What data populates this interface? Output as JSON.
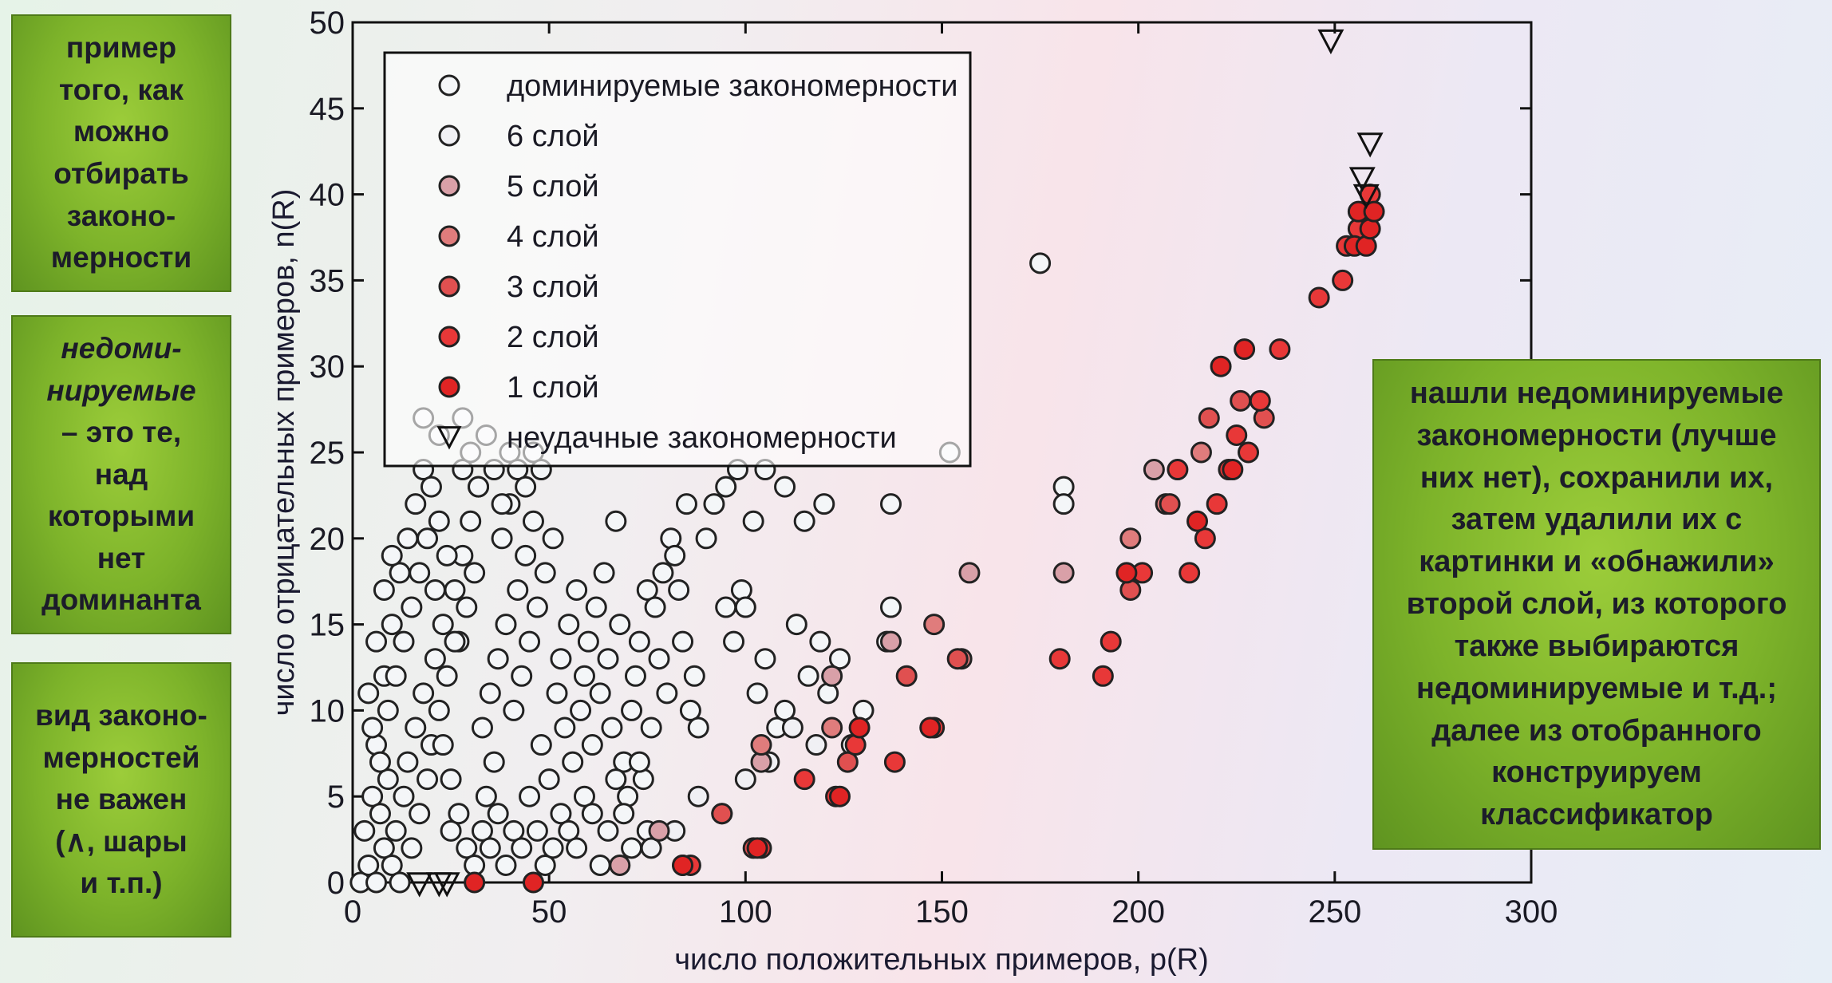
{
  "notes": {
    "left_top": "пример\nтого, как\nможно\nотбирать\nзаконо-\nмерности",
    "left_middle_em": "недоми-\nнируемые",
    "left_middle_rest": "– это те,\nнад\nкоторыми\nнет\nдоминанта",
    "left_bottom": "вид законо-\nмерностей\nне важен\n(∧, шары\nи т.п.)",
    "right": "нашли недоминируемые\nзакономерности (лучше\nних нет), сохранили их,\nзатем удалили их с\nкартинки и «обнажили»\nвторой слой, из которого\nтакже выбираются\nнедоминируемые и т.д.;\nдалее из отобранного\nконструируем\nклассификатор"
  },
  "colors": {
    "dominated": "#f4f6f8",
    "layer6": "#f0f0f4",
    "layer5": "#d9a0a8",
    "layer4": "#e07c7c",
    "layer3": "#e05050",
    "layer2": "#e83838",
    "layer1": "#e02424",
    "outline": "#222222"
  },
  "chart_data": {
    "type": "scatter",
    "xlabel": "число положительных примеров, p(R)",
    "ylabel": "число отрицательных примеров, n(R)",
    "xlim": [
      0,
      300
    ],
    "ylim": [
      0,
      50
    ],
    "xticks": [
      "0",
      "50",
      "100",
      "150",
      "200",
      "250",
      "300"
    ],
    "yticks": [
      "0",
      "5",
      "10",
      "15",
      "20",
      "25",
      "30",
      "35",
      "40",
      "45",
      "50"
    ],
    "legend_position": "top-left",
    "series": [
      {
        "name": "доминируемые закономерности",
        "marker": "circle",
        "color_key": "dominated",
        "points": [
          [
            2,
            0
          ],
          [
            4,
            1
          ],
          [
            6,
            0
          ],
          [
            8,
            2
          ],
          [
            3,
            3
          ],
          [
            5,
            5
          ],
          [
            7,
            4
          ],
          [
            9,
            6
          ],
          [
            10,
            1
          ],
          [
            11,
            3
          ],
          [
            12,
            0
          ],
          [
            13,
            5
          ],
          [
            14,
            7
          ],
          [
            15,
            2
          ],
          [
            16,
            9
          ],
          [
            17,
            4
          ],
          [
            18,
            11
          ],
          [
            19,
            6
          ],
          [
            20,
            8
          ],
          [
            21,
            13
          ],
          [
            22,
            10
          ],
          [
            23,
            15
          ],
          [
            24,
            12
          ],
          [
            25,
            3
          ],
          [
            26,
            17
          ],
          [
            27,
            14
          ],
          [
            28,
            19
          ],
          [
            29,
            16
          ],
          [
            30,
            21
          ],
          [
            31,
            18
          ],
          [
            32,
            23
          ],
          [
            33,
            9
          ],
          [
            34,
            5
          ],
          [
            35,
            11
          ],
          [
            36,
            7
          ],
          [
            37,
            13
          ],
          [
            38,
            20
          ],
          [
            39,
            15
          ],
          [
            40,
            22
          ],
          [
            41,
            10
          ],
          [
            42,
            17
          ],
          [
            43,
            12
          ],
          [
            44,
            19
          ],
          [
            45,
            14
          ],
          [
            46,
            21
          ],
          [
            47,
            16
          ],
          [
            48,
            8
          ],
          [
            49,
            18
          ],
          [
            50,
            6
          ],
          [
            51,
            20
          ],
          [
            52,
            11
          ],
          [
            53,
            13
          ],
          [
            54,
            9
          ],
          [
            55,
            15
          ],
          [
            56,
            7
          ],
          [
            57,
            17
          ],
          [
            58,
            10
          ],
          [
            59,
            12
          ],
          [
            60,
            14
          ],
          [
            61,
            8
          ],
          [
            62,
            16
          ],
          [
            63,
            11
          ],
          [
            64,
            18
          ],
          [
            65,
            13
          ],
          [
            66,
            9
          ],
          [
            67,
            21
          ],
          [
            68,
            15
          ],
          [
            69,
            7
          ],
          [
            70,
            5
          ],
          [
            71,
            10
          ],
          [
            72,
            12
          ],
          [
            73,
            14
          ],
          [
            74,
            6
          ],
          [
            75,
            17
          ],
          [
            76,
            9
          ],
          [
            77,
            16
          ],
          [
            78,
            13
          ],
          [
            79,
            18
          ],
          [
            80,
            11
          ],
          [
            81,
            20
          ],
          [
            82,
            19
          ],
          [
            83,
            17
          ],
          [
            84,
            14
          ],
          [
            85,
            22
          ],
          [
            86,
            10
          ],
          [
            87,
            12
          ],
          [
            88,
            9
          ],
          [
            90,
            20
          ],
          [
            92,
            22
          ],
          [
            95,
            16
          ],
          [
            97,
            14
          ],
          [
            99,
            17
          ],
          [
            100,
            16
          ],
          [
            103,
            11
          ],
          [
            105,
            13
          ],
          [
            108,
            9
          ],
          [
            110,
            10
          ],
          [
            113,
            15
          ],
          [
            116,
            12
          ],
          [
            119,
            14
          ],
          [
            121,
            11
          ],
          [
            124,
            13
          ],
          [
            127,
            8
          ],
          [
            130,
            10
          ],
          [
            6,
            8
          ],
          [
            8,
            12
          ],
          [
            10,
            15
          ],
          [
            12,
            18
          ],
          [
            14,
            20
          ],
          [
            16,
            22
          ],
          [
            18,
            24
          ],
          [
            20,
            23
          ],
          [
            22,
            21
          ],
          [
            24,
            19
          ],
          [
            26,
            14
          ],
          [
            28,
            24
          ],
          [
            30,
            25
          ],
          [
            32,
            23
          ],
          [
            34,
            26
          ],
          [
            36,
            24
          ],
          [
            38,
            22
          ],
          [
            40,
            25
          ],
          [
            42,
            24
          ],
          [
            44,
            23
          ],
          [
            46,
            25
          ],
          [
            48,
            24
          ],
          [
            4,
            11
          ],
          [
            6,
            14
          ],
          [
            8,
            17
          ],
          [
            10,
            19
          ],
          [
            5,
            9
          ],
          [
            7,
            7
          ],
          [
            9,
            10
          ],
          [
            11,
            12
          ],
          [
            13,
            14
          ],
          [
            15,
            16
          ],
          [
            17,
            18
          ],
          [
            19,
            20
          ],
          [
            21,
            17
          ],
          [
            23,
            8
          ],
          [
            25,
            6
          ],
          [
            27,
            4
          ],
          [
            29,
            2
          ],
          [
            31,
            1
          ],
          [
            33,
            3
          ],
          [
            35,
            2
          ],
          [
            37,
            4
          ],
          [
            39,
            1
          ],
          [
            41,
            3
          ],
          [
            43,
            2
          ],
          [
            45,
            5
          ],
          [
            47,
            3
          ],
          [
            49,
            1
          ],
          [
            51,
            2
          ],
          [
            53,
            4
          ],
          [
            55,
            3
          ],
          [
            57,
            2
          ],
          [
            59,
            5
          ],
          [
            61,
            4
          ],
          [
            63,
            1
          ],
          [
            65,
            3
          ],
          [
            67,
            6
          ],
          [
            69,
            4
          ],
          [
            71,
            2
          ],
          [
            73,
            7
          ],
          [
            75,
            3
          ],
          [
            22,
            26
          ],
          [
            18,
            27
          ],
          [
            28,
            27
          ],
          [
            137,
            22
          ],
          [
            137,
            16
          ],
          [
            136,
            14
          ],
          [
            175,
            36
          ],
          [
            181,
            23
          ],
          [
            181,
            22
          ],
          [
            152,
            25
          ],
          [
            105,
            24
          ],
          [
            110,
            23
          ],
          [
            115,
            21
          ],
          [
            120,
            22
          ],
          [
            95,
            23
          ],
          [
            98,
            24
          ],
          [
            102,
            21
          ]
        ]
      },
      {
        "name": "6 слой",
        "marker": "circle",
        "color_key": "layer6",
        "points": [
          [
            76,
            2
          ],
          [
            82,
            3
          ],
          [
            88,
            5
          ],
          [
            94,
            4
          ],
          [
            100,
            6
          ],
          [
            106,
            7
          ],
          [
            112,
            9
          ],
          [
            118,
            8
          ]
        ]
      },
      {
        "name": "5 слой",
        "marker": "circle",
        "color_key": "layer5",
        "points": [
          [
            68,
            1
          ],
          [
            78,
            3
          ],
          [
            104,
            7
          ],
          [
            122,
            12
          ],
          [
            137,
            14
          ],
          [
            157,
            18
          ],
          [
            181,
            18
          ],
          [
            204,
            24
          ]
        ]
      },
      {
        "name": "4 слой",
        "marker": "circle",
        "color_key": "layer4",
        "points": [
          [
            84,
            1
          ],
          [
            104,
            8
          ],
          [
            122,
            9
          ],
          [
            148,
            15
          ],
          [
            155,
            13
          ],
          [
            198,
            20
          ],
          [
            207,
            22
          ],
          [
            216,
            25
          ]
        ]
      },
      {
        "name": "3 слой",
        "marker": "circle",
        "color_key": "layer3",
        "points": [
          [
            94,
            4
          ],
          [
            102,
            2
          ],
          [
            126,
            7
          ],
          [
            141,
            12
          ],
          [
            154,
            13
          ],
          [
            198,
            17
          ],
          [
            208,
            22
          ],
          [
            218,
            27
          ],
          [
            226,
            28
          ],
          [
            232,
            27
          ]
        ]
      },
      {
        "name": "2 слой",
        "marker": "circle",
        "color_key": "layer2",
        "points": [
          [
            86,
            1
          ],
          [
            104,
            2
          ],
          [
            115,
            6
          ],
          [
            123,
            5
          ],
          [
            128,
            8
          ],
          [
            138,
            7
          ],
          [
            148,
            9
          ],
          [
            180,
            13
          ],
          [
            191,
            12
          ],
          [
            193,
            14
          ],
          [
            201,
            18
          ],
          [
            210,
            24
          ],
          [
            213,
            18
          ],
          [
            217,
            20
          ],
          [
            220,
            22
          ],
          [
            223,
            24
          ],
          [
            225,
            26
          ],
          [
            228,
            25
          ],
          [
            231,
            28
          ],
          [
            236,
            31
          ],
          [
            246,
            34
          ],
          [
            252,
            35
          ],
          [
            253,
            37
          ],
          [
            256,
            38
          ],
          [
            257,
            39
          ],
          [
            259,
            40
          ]
        ]
      },
      {
        "name": "1 слой",
        "marker": "circle",
        "color_key": "layer1",
        "points": [
          [
            31,
            0
          ],
          [
            46,
            0
          ],
          [
            84,
            1
          ],
          [
            103,
            2
          ],
          [
            124,
            5
          ],
          [
            129,
            9
          ],
          [
            147,
            9
          ],
          [
            197,
            18
          ],
          [
            215,
            21
          ],
          [
            221,
            30
          ],
          [
            224,
            24
          ],
          [
            227,
            31
          ],
          [
            255,
            37
          ],
          [
            256,
            39
          ],
          [
            258,
            37
          ],
          [
            259,
            38
          ],
          [
            260,
            39
          ]
        ]
      },
      {
        "name": "неудачные закономерности",
        "marker": "triangle-down",
        "color_key": "dominated",
        "points": [
          [
            249,
            49
          ],
          [
            259,
            43
          ],
          [
            257,
            41
          ],
          [
            258,
            40
          ],
          [
            17,
            0
          ],
          [
            22,
            0
          ],
          [
            24,
            0
          ]
        ]
      }
    ]
  }
}
